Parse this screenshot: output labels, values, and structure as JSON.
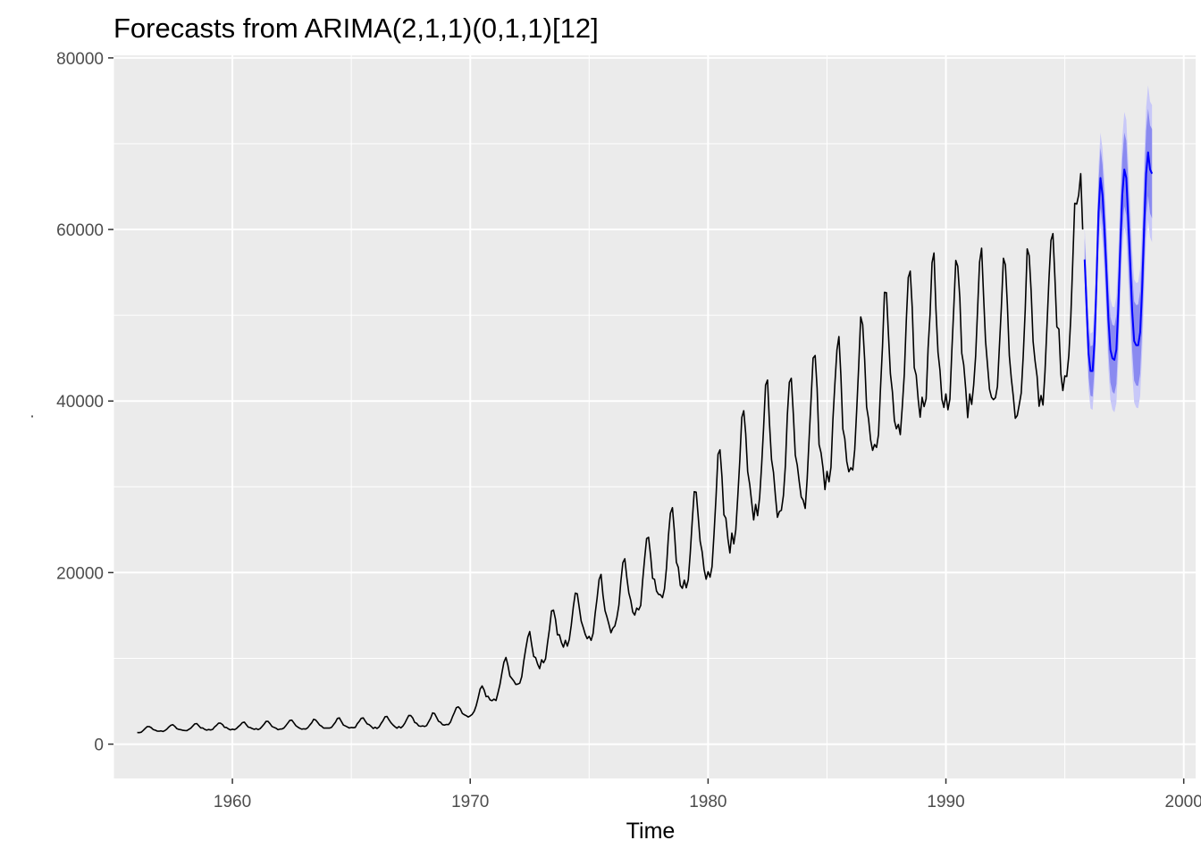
{
  "chart_data": {
    "type": "line",
    "title": "Forecasts from ARIMA(2,1,1)(0,1,1)[12]",
    "xlabel": "Time",
    "ylabel": "",
    "ylabel_marker": "·",
    "xlim": [
      1955,
      2000.5
    ],
    "ylim": [
      -4000,
      80300
    ],
    "x_ticks": [
      1960,
      1970,
      1980,
      1990,
      2000
    ],
    "y_ticks": [
      0,
      20000,
      40000,
      60000,
      80000
    ],
    "x_tick_labels": [
      "1960",
      "1970",
      "1980",
      "1990",
      "2000"
    ],
    "y_tick_labels": [
      "0",
      "20000",
      "40000",
      "60000",
      "80000"
    ],
    "grid": true,
    "colors": {
      "panel": "#ebebeb",
      "grid": "#ffffff",
      "history": "#000000",
      "forecast": "#0000ff",
      "ci80": "#8a8af0",
      "ci95": "#c8c8f8"
    },
    "history": {
      "start": 1956.0,
      "frequency": 12,
      "anchors": [
        [
          1956.0,
          1600
        ],
        [
          1957.0,
          1800
        ],
        [
          1958.0,
          1900
        ],
        [
          1959.0,
          2000
        ],
        [
          1960.0,
          2050
        ],
        [
          1962.0,
          2150
        ],
        [
          1964.0,
          2300
        ],
        [
          1966.0,
          2450
        ],
        [
          1968.0,
          2650
        ],
        [
          1969.0,
          2900
        ],
        [
          1970.0,
          4000
        ],
        [
          1971.0,
          6500
        ],
        [
          1972.0,
          9000
        ],
        [
          1973.0,
          11500
        ],
        [
          1974.0,
          14000
        ],
        [
          1975.0,
          15000
        ],
        [
          1976.0,
          16500
        ],
        [
          1977.0,
          18500
        ],
        [
          1978.0,
          21000
        ],
        [
          1979.0,
          22500
        ],
        [
          1980.0,
          24500
        ],
        [
          1981.0,
          29000
        ],
        [
          1982.0,
          33500
        ],
        [
          1983.0,
          34000
        ],
        [
          1984.0,
          35000
        ],
        [
          1985.0,
          37500
        ],
        [
          1986.0,
          39000
        ],
        [
          1987.0,
          42000
        ],
        [
          1988.0,
          44000
        ],
        [
          1989.0,
          46500
        ],
        [
          1990.0,
          47000
        ],
        [
          1991.0,
          46500
        ],
        [
          1992.0,
          47500
        ],
        [
          1993.0,
          46000
        ],
        [
          1994.0,
          48500
        ],
        [
          1995.0,
          51000
        ],
        [
          1995.67,
          53000
        ]
      ],
      "amplitude_anchors": [
        [
          1956.0,
          350
        ],
        [
          1960.0,
          450
        ],
        [
          1965.0,
          650
        ],
        [
          1969.0,
          850
        ],
        [
          1970.0,
          1000
        ],
        [
          1972.0,
          2500
        ],
        [
          1975.0,
          3300
        ],
        [
          1978.0,
          4800
        ],
        [
          1980.0,
          6500
        ],
        [
          1983.0,
          8500
        ],
        [
          1986.0,
          8500
        ],
        [
          1988.0,
          9500
        ],
        [
          1990.0,
          9500
        ],
        [
          1993.0,
          9500
        ],
        [
          1995.67,
          11000
        ]
      ],
      "month_pattern": [
        -0.7,
        -0.8,
        -0.6,
        -0.1,
        0.45,
        1.0,
        1.05,
        0.5,
        -0.1,
        -0.3,
        -0.6,
        -0.8
      ],
      "noise": 0.22,
      "seed": 7,
      "end_values": [
        [
          1995.5833,
          64000
        ],
        [
          1995.6667,
          66500
        ],
        [
          1995.75,
          60000
        ]
      ]
    },
    "forecast": {
      "start": 1995.8333,
      "end": 1998.6667,
      "points": [
        [
          1995.8333,
          56500
        ],
        [
          1995.9167,
          51000
        ],
        [
          1996.0,
          45500
        ],
        [
          1996.0833,
          43500
        ],
        [
          1996.1667,
          43500
        ],
        [
          1996.25,
          47000
        ],
        [
          1996.3333,
          54000
        ],
        [
          1996.4167,
          62000
        ],
        [
          1996.5,
          66000
        ],
        [
          1996.5833,
          64000
        ],
        [
          1996.6667,
          60000
        ],
        [
          1996.75,
          55000
        ],
        [
          1996.8333,
          49500
        ],
        [
          1996.9167,
          46000
        ],
        [
          1997.0,
          45000
        ],
        [
          1997.0833,
          44800
        ],
        [
          1997.1667,
          46000
        ],
        [
          1997.25,
          51000
        ],
        [
          1997.3333,
          58000
        ],
        [
          1997.4167,
          64000
        ],
        [
          1997.5,
          67000
        ],
        [
          1997.5833,
          66000
        ],
        [
          1997.6667,
          61000
        ],
        [
          1997.75,
          56000
        ],
        [
          1997.8333,
          50500
        ],
        [
          1997.9167,
          47000
        ],
        [
          1998.0,
          46500
        ],
        [
          1998.0833,
          46500
        ],
        [
          1998.1667,
          48000
        ],
        [
          1998.25,
          53000
        ],
        [
          1998.3333,
          60000
        ],
        [
          1998.4167,
          66500
        ],
        [
          1998.5,
          69000
        ],
        [
          1998.5833,
          67000
        ],
        [
          1998.6667,
          66500
        ]
      ],
      "ci80_halfwidth": [
        [
          1995.8333,
          2500
        ],
        [
          1996.5,
          3500
        ],
        [
          1997.5,
          4300
        ],
        [
          1998.6667,
          5200
        ]
      ],
      "ci95_halfwidth": [
        [
          1995.8333,
          3800
        ],
        [
          1996.5,
          5300
        ],
        [
          1997.5,
          6700
        ],
        [
          1998.6667,
          8000
        ]
      ]
    }
  }
}
